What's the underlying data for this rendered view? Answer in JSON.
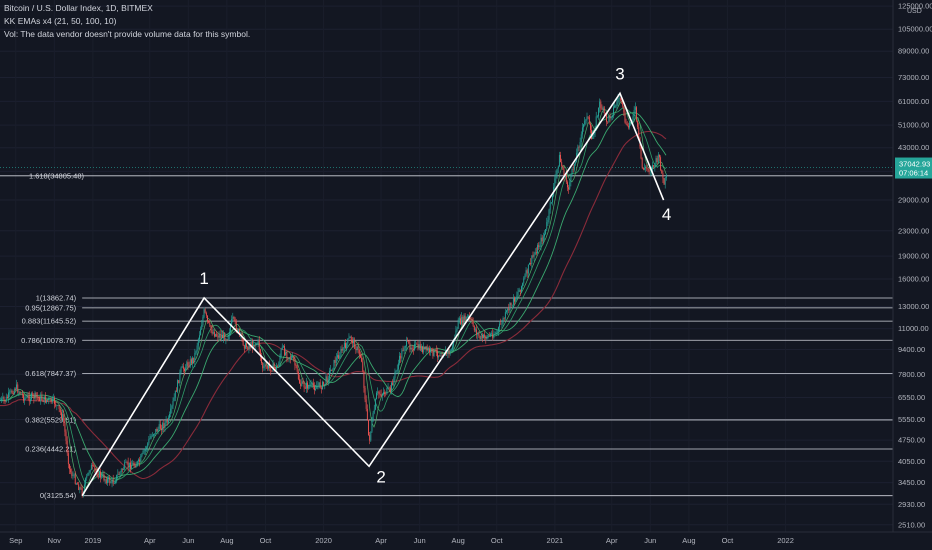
{
  "header": {
    "title": "Bitcoin / U.S. Dollar Index, 1D, BITMEX",
    "indicator": "KK EMAs x4 (21, 50, 100, 10)",
    "volume_note": "Vol: The data vendor doesn't provide volume data for this symbol."
  },
  "price_badge": {
    "price": "37042.93",
    "countdown": "07:06:14",
    "color": "#26a69a"
  },
  "colors": {
    "background": "#131722",
    "up": "#26a69a",
    "down": "#ef5350",
    "ema21": "#2f9c6a",
    "ema50": "#3aa86f",
    "ema100": "#8a2b3a",
    "ema10": "#4fb06a",
    "fib": "#d1d4dc",
    "wave": "#ffffff"
  },
  "chart_data": {
    "type": "line",
    "symbol": "Bitcoin / U.S. Dollar Index",
    "interval": "1D",
    "scale": "log",
    "y_currency": "USD",
    "y_axis_labels": [
      "125000.00",
      "105000.00",
      "89000.00",
      "73000.00",
      "61000.00",
      "51000.00",
      "43000.00",
      "36000.00",
      "29000.00",
      "23000.00",
      "19000.00",
      "16000.00",
      "13000.00",
      "11000.00",
      "9400.00",
      "7800.00",
      "6550.00",
      "5550.00",
      "4750.00",
      "4050.00",
      "3450.00",
      "2930.00",
      "2510.00"
    ],
    "x_axis_labels": [
      "Sep",
      "Nov",
      "2019",
      "Apr",
      "Jun",
      "Aug",
      "Oct",
      "2020",
      "Apr",
      "Jun",
      "Aug",
      "Oct",
      "2021",
      "Apr",
      "Jun",
      "Aug",
      "Oct",
      "2022"
    ],
    "fib_levels": [
      {
        "label": "1.618(34805.48)",
        "value": 34805.48
      },
      {
        "label": "1(13862.74)",
        "value": 13862.74
      },
      {
        "label": "0.95(12867.75)",
        "value": 12867.75
      },
      {
        "label": "0.883(11645.52)",
        "value": 11645.52
      },
      {
        "label": "0.786(10078.76)",
        "value": 10078.76
      },
      {
        "label": "0.618(7847.37)",
        "value": 7847.37
      },
      {
        "label": "0.382(5529.61)",
        "value": 5529.61
      },
      {
        "label": "0.236(4442.21)",
        "value": 4442.21
      },
      {
        "label": "0(3125.54)",
        "value": 3125.54
      }
    ],
    "waves": [
      {
        "label": "",
        "date": "2018-12-15",
        "value": 3125.54
      },
      {
        "label": "1",
        "date": "2019-06-26",
        "value": 13862.74
      },
      {
        "label": "2",
        "date": "2020-03-13",
        "value": 3900
      },
      {
        "label": "3",
        "date": "2021-04-14",
        "value": 64800
      },
      {
        "label": "4",
        "date": "2021-06-22",
        "value": 29000
      }
    ],
    "price_path": [
      [
        "2018-08-15",
        6400
      ],
      [
        "2018-09-01",
        7100
      ],
      [
        "2018-09-15",
        6500
      ],
      [
        "2018-10-01",
        6600
      ],
      [
        "2018-10-15",
        6450
      ],
      [
        "2018-11-01",
        6350
      ],
      [
        "2018-11-15",
        5600
      ],
      [
        "2018-11-25",
        3800
      ],
      [
        "2018-12-15",
        3200
      ],
      [
        "2018-12-28",
        3900
      ],
      [
        "2019-01-15",
        3600
      ],
      [
        "2019-02-01",
        3450
      ],
      [
        "2019-02-20",
        3900
      ],
      [
        "2019-03-15",
        4000
      ],
      [
        "2019-04-05",
        5000
      ],
      [
        "2019-05-01",
        5500
      ],
      [
        "2019-05-20",
        8000
      ],
      [
        "2019-06-10",
        8800
      ],
      [
        "2019-06-26",
        12500
      ],
      [
        "2019-07-05",
        11000
      ],
      [
        "2019-07-15",
        10500
      ],
      [
        "2019-08-01",
        10300
      ],
      [
        "2019-08-10",
        11800
      ],
      [
        "2019-08-30",
        9600
      ],
      [
        "2019-09-20",
        9900
      ],
      [
        "2019-09-26",
        8200
      ],
      [
        "2019-10-20",
        8200
      ],
      [
        "2019-10-27",
        9500
      ],
      [
        "2019-11-15",
        8600
      ],
      [
        "2019-11-25",
        7200
      ],
      [
        "2019-12-15",
        7100
      ],
      [
        "2020-01-01",
        7200
      ],
      [
        "2020-01-20",
        8700
      ],
      [
        "2020-02-13",
        10300
      ],
      [
        "2020-03-01",
        8800
      ],
      [
        "2020-03-13",
        4700
      ],
      [
        "2020-03-25",
        6700
      ],
      [
        "2020-04-15",
        6900
      ],
      [
        "2020-05-08",
        9800
      ],
      [
        "2020-06-01",
        9500
      ],
      [
        "2020-07-01",
        9100
      ],
      [
        "2020-07-20",
        9200
      ],
      [
        "2020-08-01",
        11500
      ],
      [
        "2020-08-17",
        12000
      ],
      [
        "2020-09-05",
        10200
      ],
      [
        "2020-10-01",
        10700
      ],
      [
        "2020-10-21",
        12900
      ],
      [
        "2020-11-10",
        15300
      ],
      [
        "2020-11-25",
        18500
      ],
      [
        "2020-12-17",
        22800
      ],
      [
        "2021-01-08",
        40000
      ],
      [
        "2021-01-22",
        31500
      ],
      [
        "2021-02-10",
        46000
      ],
      [
        "2021-02-21",
        56000
      ],
      [
        "2021-02-28",
        45500
      ],
      [
        "2021-03-13",
        60000
      ],
      [
        "2021-03-25",
        52500
      ],
      [
        "2021-04-14",
        63500
      ],
      [
        "2021-04-25",
        49000
      ],
      [
        "2021-05-08",
        57500
      ],
      [
        "2021-05-19",
        37000
      ],
      [
        "2021-06-01",
        36500
      ],
      [
        "2021-06-15",
        40000
      ],
      [
        "2021-06-22",
        32500
      ],
      [
        "2021-06-28",
        35000
      ]
    ],
    "ylim": [
      2450,
      127000
    ],
    "xlim": [
      "2018-08-07",
      "2022-06-20"
    ]
  }
}
